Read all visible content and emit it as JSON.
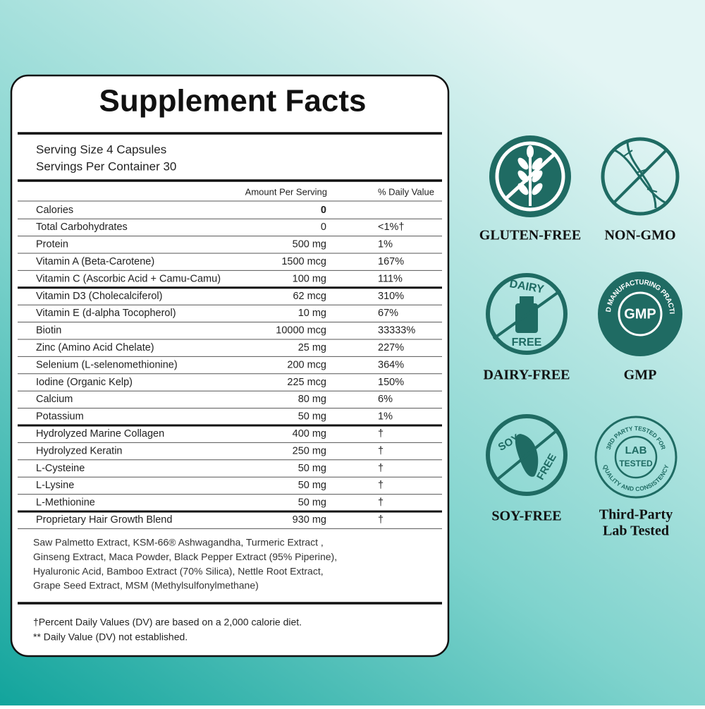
{
  "panel": {
    "title": "Supplement Facts",
    "serving_size": "Serving Size 4  Capsules",
    "servings_per_container": "Servings Per Container 30",
    "columns": [
      "Amount Per Serving",
      "% Daily Value"
    ],
    "sections": [
      [
        {
          "name": "Calories",
          "amount": "0"
        },
        {
          "name": "Total Carbohydrates",
          "amount": "0",
          "dv": "<1%†"
        },
        {
          "name": "Protein",
          "amount": "500 mg",
          "dv": "1%"
        },
        {
          "name": "Vitamin A (Beta-Carotene)",
          "amount": "1500 mcg",
          "dv": "167%"
        },
        {
          "name": "Vitamin C (Ascorbic Acid + Camu-Camu)",
          "amount": "100 mg",
          "dv": "111%"
        }
      ],
      [
        {
          "name": "Vitamin D3 (Cholecalciferol)",
          "amount": "62 mcg",
          "dv": "310%"
        },
        {
          "name": "Vitamin E (d-alpha Tocopherol)",
          "amount": "10 mg",
          "dv": "67%"
        },
        {
          "name": "Biotin",
          "amount": "10000 mcg",
          "dv": "33333%"
        },
        {
          "name": "Zinc (Amino Acid Chelate)",
          "amount": "25 mg",
          "dv": "227%"
        },
        {
          "name": "Selenium (L-selenomethionine)",
          "amount": "200 mcg",
          "dv": "364%"
        },
        {
          "name": "Iodine (Organic Kelp)",
          "amount": "225 mcg",
          "dv": "150%"
        },
        {
          "name": "Calcium",
          "amount": "80 mg",
          "dv": "6%"
        },
        {
          "name": "Potassium",
          "amount": "50 mg",
          "dv": "1%"
        }
      ],
      [
        {
          "name": "Hydrolyzed Marine Collagen",
          "amount": "400 mg",
          "dv": "†"
        },
        {
          "name": "Hydrolyzed Keratin",
          "amount": "250 mg",
          "dv": "†"
        },
        {
          "name": "L-Cysteine",
          "amount": "50 mg",
          "dv": "†"
        },
        {
          "name": "L-Lysine",
          "amount": "50 mg",
          "dv": "†"
        },
        {
          "name": "L-Methionine",
          "amount": "50 mg",
          "dv": "†"
        }
      ],
      [
        {
          "name": "Proprietary Hair Growth Blend",
          "amount": "930 mg",
          "dv": "†"
        }
      ]
    ],
    "blend": [
      "Saw Palmetto Extract, KSM-66® Ashwagandha, Turmeric Extract ,",
      "Ginseng Extract, Maca Powder, Black Pepper Extract (95% Piperine),",
      "Hyaluronic Acid, Bamboo Extract (70% Silica), Nettle Root Extract,",
      "Grape Seed Extract, MSM (Methylsulfonylmethane)"
    ],
    "footnotes": [
      "†Percent Daily Values (DV) are based on a 2,000 calorie diet.",
      "** Daily Value (DV) not established."
    ]
  },
  "badges": [
    {
      "label": [
        "GLUTEN-FREE"
      ]
    },
    {
      "label": [
        "NON-GMO"
      ]
    },
    {
      "label": [
        "DAIRY-FREE"
      ],
      "icon_text": [
        "DAIRY",
        "FREE"
      ]
    },
    {
      "label": [
        "GMP"
      ],
      "icon_text": [
        "GMP",
        "GOOD MANUFACTURING PRACTICES"
      ]
    },
    {
      "label": [
        "SOY-FREE"
      ],
      "icon_text": [
        "SOY",
        "FREE"
      ]
    },
    {
      "label": [
        "Third-Party",
        "Lab Tested"
      ],
      "icon_text": [
        "3RD PARTY TESTED FOR",
        "QUALITY AND CONSISTENCY",
        "LAB",
        "TESTED"
      ]
    }
  ]
}
